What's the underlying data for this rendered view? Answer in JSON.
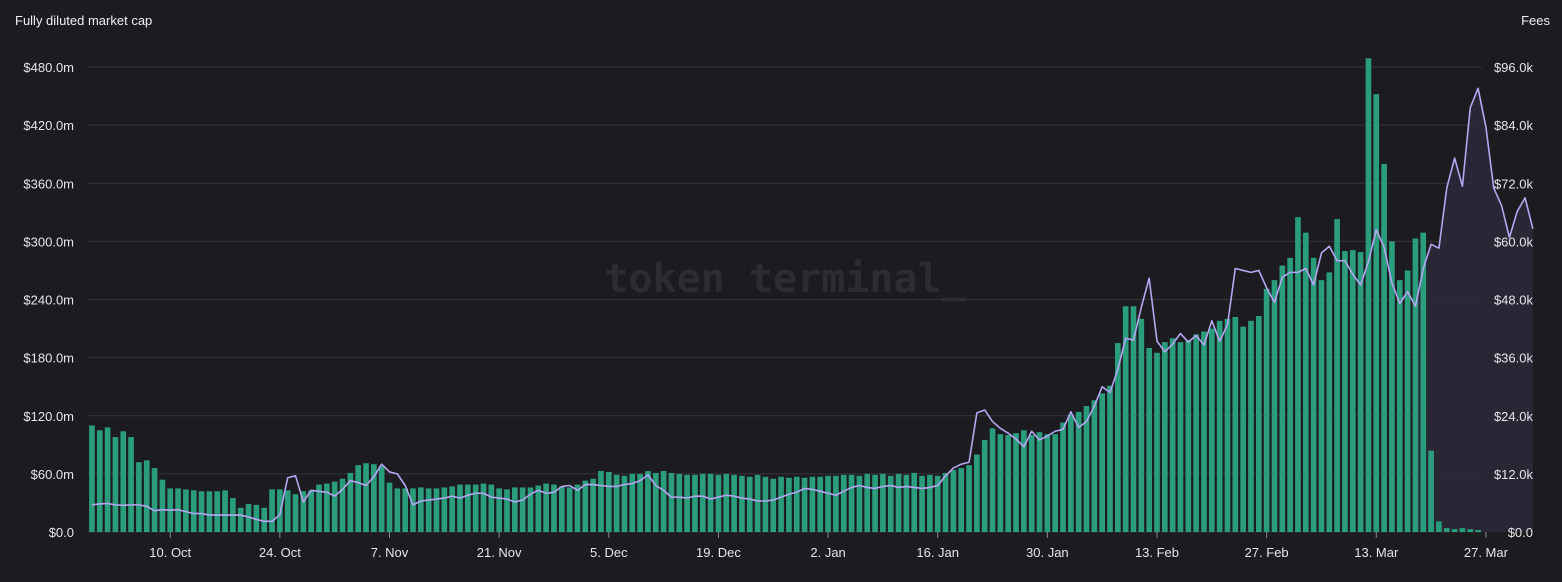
{
  "header": {
    "left_axis_title": "Fully diluted market cap",
    "right_axis_title": "Fees"
  },
  "watermark": "token terminal_",
  "colors": {
    "background": "#1c1b1f",
    "grid": "#36353b",
    "bar": "#2a9d7c",
    "line": "#b7a6f2",
    "area_fill": "#2b2838"
  },
  "chart_data": {
    "type": "bar",
    "title": "",
    "xlabel": "",
    "ylabel": "Fully diluted market cap",
    "y2label": "Fees",
    "grid": true,
    "legend": "none",
    "start_date": "2022-09-30",
    "x_ticks": [
      "10. Oct",
      "24. Oct",
      "7. Nov",
      "21. Nov",
      "5. Dec",
      "19. Dec",
      "2. Jan",
      "16. Jan",
      "30. Jan",
      "13. Feb",
      "27. Feb",
      "13. Mar",
      "27. Mar"
    ],
    "left_axis": {
      "ylim": [
        0,
        480
      ],
      "ticks": [
        "$0.0",
        "$60.0m",
        "$120.0m",
        "$180.0m",
        "$240.0m",
        "$300.0m",
        "$360.0m",
        "$420.0m",
        "$480.0m"
      ]
    },
    "right_axis": {
      "ylim": [
        0,
        96
      ],
      "ticks": [
        "$0.0",
        "$12.0k",
        "$24.0k",
        "$36.0k",
        "$48.0k",
        "$60.0k",
        "$72.0k",
        "$84.0k",
        "$96.0k"
      ]
    },
    "series": [
      {
        "name": "Fees",
        "type": "bar",
        "axis": "right",
        "unit": "$k",
        "values": [
          22.0,
          21.0,
          21.6,
          19.6,
          20.8,
          19.6,
          14.4,
          14.8,
          13.2,
          10.8,
          9.0,
          9.0,
          8.8,
          8.6,
          8.4,
          8.4,
          8.4,
          8.6,
          7.0,
          5.0,
          5.8,
          5.6,
          5.0,
          8.8,
          8.8,
          8.6,
          7.8,
          8.4,
          8.6,
          9.8,
          10.0,
          10.4,
          11.0,
          12.2,
          13.8,
          14.2,
          14.0,
          13.6,
          10.2,
          9.0,
          9.0,
          9.0,
          9.2,
          9.0,
          9.0,
          9.2,
          9.4,
          9.8,
          9.8,
          9.8,
          10.0,
          9.8,
          9.0,
          8.8,
          9.2,
          9.2,
          9.2,
          9.6,
          10.0,
          9.8,
          9.4,
          9.2,
          9.8,
          10.6,
          11.0,
          12.6,
          12.4,
          11.8,
          11.6,
          12.0,
          12.0,
          12.6,
          12.2,
          12.6,
          12.2,
          12.0,
          11.8,
          11.8,
          12.0,
          12.0,
          11.8,
          12.0,
          11.8,
          11.6,
          11.4,
          11.8,
          11.4,
          11.0,
          11.4,
          11.2,
          11.4,
          11.2,
          11.4,
          11.4,
          11.6,
          11.6,
          11.8,
          11.8,
          11.6,
          12.0,
          11.8,
          12.0,
          11.6,
          12.0,
          11.8,
          12.2,
          11.6,
          11.8,
          11.6,
          12.2,
          12.8,
          13.2,
          13.8,
          16.0,
          19.0,
          21.4,
          20.2,
          20.0,
          20.4,
          21.0,
          20.0,
          20.6,
          20.2,
          20.2,
          22.6,
          24.2,
          24.8,
          26.0,
          27.2,
          28.6,
          30.2,
          39.0,
          46.6,
          46.6,
          44.0,
          38.0,
          37.0,
          39.2,
          40.0,
          39.2,
          39.6,
          40.8,
          41.4,
          42.0,
          43.6,
          44.0,
          44.4,
          42.4,
          43.6,
          44.6,
          50.2,
          52.0,
          55.0,
          56.6,
          65.0,
          61.8,
          56.6,
          52.0,
          53.6,
          64.6,
          58.0,
          58.2,
          57.8,
          97.8,
          90.4,
          76.0,
          60.0,
          52.0,
          54.0,
          60.6,
          61.8,
          16.8,
          2.2,
          0.8,
          0.6,
          0.8,
          0.6,
          0.4
        ]
      },
      {
        "name": "Fully diluted market cap",
        "type": "line",
        "axis": "left",
        "unit": "$m",
        "values": [
          28.0,
          29.0,
          29.5,
          28.0,
          27.5,
          28.0,
          28.0,
          26.5,
          22.0,
          23.0,
          22.5,
          23.0,
          21.0,
          19.0,
          19.0,
          17.5,
          17.5,
          17.5,
          17.5,
          17.5,
          15.5,
          13.0,
          11.0,
          11.0,
          18.0,
          56.0,
          58.0,
          31.0,
          43.0,
          42.0,
          41.0,
          37.0,
          44.0,
          53.0,
          51.0,
          48.0,
          57.0,
          70.0,
          62.0,
          60.0,
          48.0,
          28.0,
          32.0,
          33.0,
          34.0,
          35.0,
          37.0,
          35.0,
          38.0,
          40.0,
          40.0,
          36.0,
          35.0,
          34.0,
          31.0,
          33.0,
          39.0,
          43.0,
          40.0,
          41.0,
          47.0,
          48.0,
          43.0,
          49.0,
          49.0,
          48.0,
          47.0,
          47.0,
          49.0,
          50.0,
          53.0,
          59.0,
          48.0,
          43.0,
          36.0,
          36.0,
          35.0,
          37.0,
          37.0,
          34.0,
          36.0,
          38.0,
          37.0,
          35.0,
          34.0,
          32.0,
          32.0,
          33.0,
          36.0,
          39.0,
          41.0,
          45.0,
          44.0,
          42.0,
          40.0,
          38.0,
          42.0,
          46.0,
          48.0,
          46.0,
          45.0,
          47.0,
          48.0,
          46.0,
          47.0,
          46.0,
          45.0,
          46.0,
          48.0,
          58.0,
          66.0,
          70.0,
          72.0,
          123.0,
          126.0,
          114.0,
          107.0,
          102.0,
          96.0,
          88.0,
          104.0,
          95.0,
          99.0,
          104.0,
          106.0,
          124.0,
          108.0,
          114.0,
          130.0,
          150.0,
          144.0,
          168.0,
          200.0,
          198.0,
          232.0,
          262.0,
          197.0,
          186.0,
          194.0,
          205.0,
          196.0,
          203.0,
          193.0,
          218.0,
          197.0,
          214.0,
          272.0,
          270.0,
          268.0,
          270.0,
          252.0,
          237.0,
          263.0,
          268.0,
          268.0,
          272.0,
          255.0,
          288.0,
          295.0,
          280.0,
          280.0,
          266.0,
          255.0,
          279.0,
          312.0,
          294.0,
          257.0,
          236.0,
          248.0,
          233.0,
          272.0,
          297.0,
          293.0,
          355.0,
          386.0,
          357.0,
          438.0,
          458.0,
          418.0,
          355.0,
          337.0,
          304.0,
          331.0,
          345.0,
          313.0
        ]
      }
    ]
  }
}
